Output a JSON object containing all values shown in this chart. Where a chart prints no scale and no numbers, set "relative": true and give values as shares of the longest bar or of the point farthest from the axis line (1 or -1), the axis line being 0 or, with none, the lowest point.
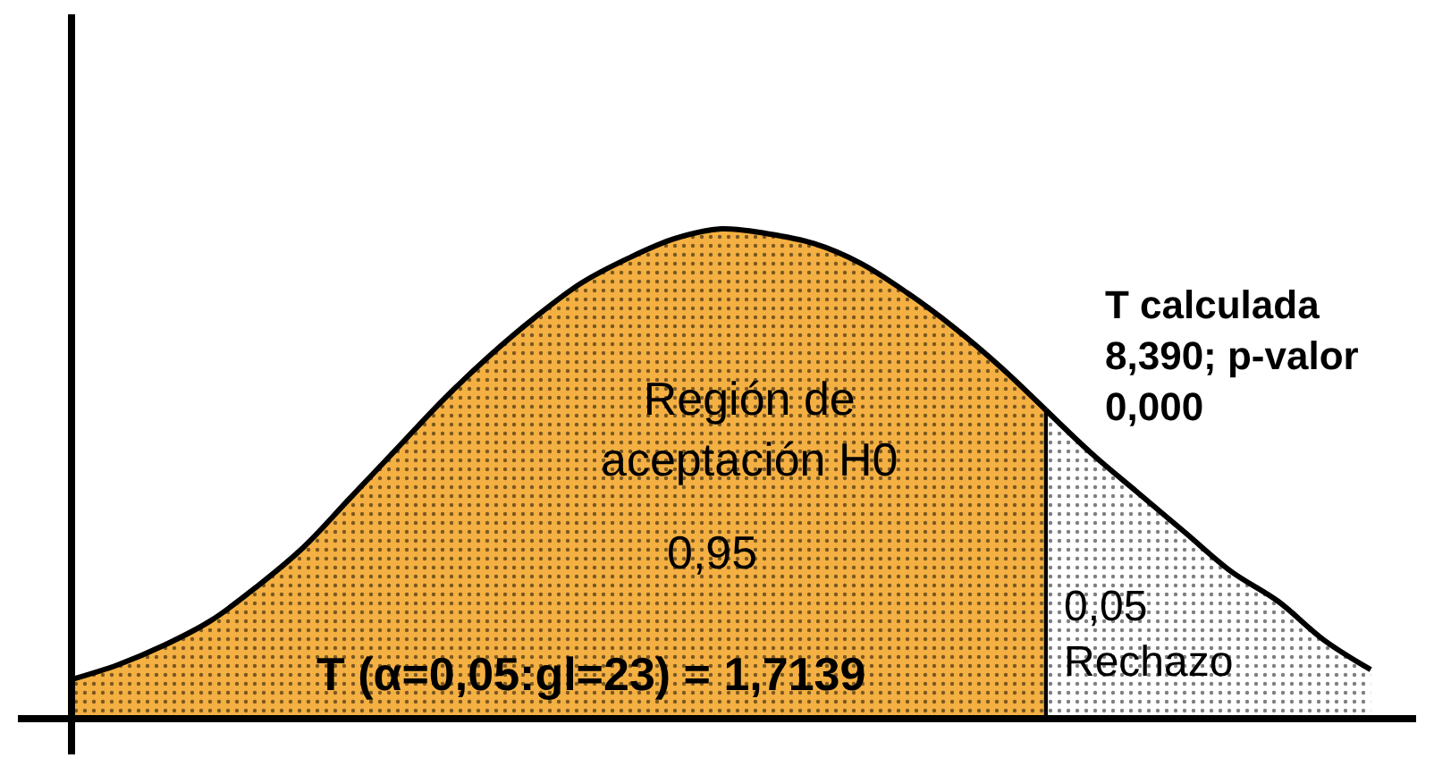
{
  "chart_data": {
    "type": "area",
    "relative": true,
    "tick_labels": false,
    "categories": [
      null,
      null,
      null,
      null,
      null,
      null,
      null,
      null,
      null,
      null,
      null,
      null,
      null,
      null,
      null,
      null,
      null,
      null,
      null,
      null,
      null,
      null,
      null,
      null,
      null,
      null,
      null,
      null,
      null
    ],
    "series": [
      {
        "color": "#f4b042",
        "values": [
          0.08,
          0.11,
          0.15,
          0.2,
          0.27,
          0.35,
          0.45,
          0.55,
          0.65,
          0.74,
          0.82,
          0.89,
          0.94,
          0.98,
          1.0,
          0.99,
          0.97,
          0.93,
          0.87,
          0.8,
          0.72,
          0.63,
          null,
          null,
          null,
          null,
          null,
          null,
          null
        ]
      },
      {
        "color": "#ffffff",
        "values": [
          null,
          null,
          null,
          null,
          null,
          null,
          null,
          null,
          null,
          null,
          null,
          null,
          null,
          null,
          null,
          null,
          null,
          null,
          null,
          null,
          null,
          0.63,
          0.54,
          0.46,
          0.38,
          0.3,
          0.24,
          0.16,
          0.1
        ]
      }
    ],
    "annotations": [
      "Región de\naceptación H0",
      "0,95",
      "T (α=0,05:gl=23) = 1,7139",
      "0,05\nRechazo",
      "T calculada\n8,390; p-valor\n0,000"
    ]
  }
}
